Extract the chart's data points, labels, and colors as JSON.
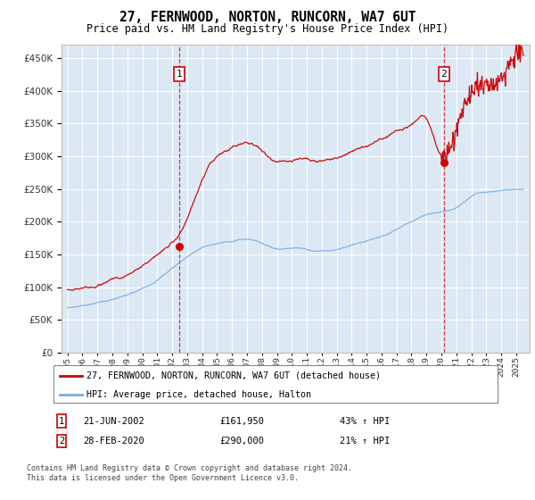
{
  "title": "27, FERNWOOD, NORTON, RUNCORN, WA7 6UT",
  "subtitle": "Price paid vs. HM Land Registry's House Price Index (HPI)",
  "legend_line1": "27, FERNWOOD, NORTON, RUNCORN, WA7 6UT (detached house)",
  "legend_line2": "HPI: Average price, detached house, Halton",
  "annotation1_date": "21-JUN-2002",
  "annotation1_price": "£161,950",
  "annotation1_hpi": "43% ↑ HPI",
  "annotation1_year": 2002.47,
  "annotation1_value": 161950,
  "annotation2_date": "28-FEB-2020",
  "annotation2_price": "£290,000",
  "annotation2_hpi": "21% ↑ HPI",
  "annotation2_year": 2020.16,
  "annotation2_value": 290000,
  "footnote1": "Contains HM Land Registry data © Crown copyright and database right 2024.",
  "footnote2": "This data is licensed under the Open Government Licence v3.0.",
  "red_color": "#cc0000",
  "blue_color": "#7aade0",
  "plot_bg_color": "#dce9f5",
  "ylim_min": 0,
  "ylim_max": 470000,
  "xlim_min": 1994.6,
  "xlim_max": 2025.9
}
